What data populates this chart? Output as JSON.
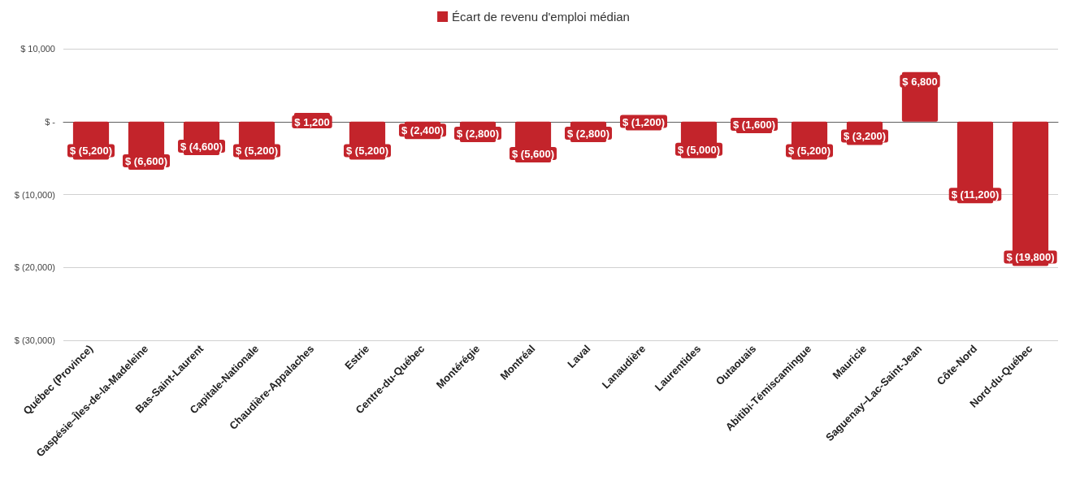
{
  "chart_data": {
    "type": "bar",
    "categories": [
      "Québec (Province)",
      "Gaspésie–Îles-de-la-Madeleine",
      "Bas-Saint-Laurent",
      "Capitale-Nationale",
      "Chaudière-Appalaches",
      "Estrie",
      "Centre-du-Québec",
      "Montérégie",
      "Montréal",
      "Laval",
      "Lanaudière",
      "Laurentides",
      "Outaouais",
      "Abitibi-Témiscamingue",
      "Mauricie",
      "Saguenay–Lac-Saint-Jean",
      "Côte-Nord",
      "Nord-du-Québec"
    ],
    "series": [
      {
        "name": "Écart de revenu d'emploi médian",
        "color": "#c3242b",
        "values": [
          -5200,
          -6600,
          -4600,
          -5200,
          1200,
          -5200,
          -2400,
          -2800,
          -5600,
          -2800,
          -1200,
          -5000,
          -1600,
          -5200,
          -3200,
          6800,
          -11200,
          -19800
        ],
        "value_labels": [
          "$ (5,200)",
          "$ (6,600)",
          "$ (4,600)",
          "$ (5,200)",
          "$ 1,200",
          "$ (5,200)",
          "$ (2,400)",
          "$ (2,800)",
          "$ (5,600)",
          "$ (2,800)",
          "$ (1,200)",
          "$ (5,000)",
          "$ (1,600)",
          "$ (5,200)",
          "$ (3,200)",
          "$ 6,800",
          "$ (11,200)",
          "$ (19,800)"
        ]
      }
    ],
    "ylim": [
      -30000,
      10000
    ],
    "yticks": [
      {
        "value": 10000,
        "label": "$ 10,000"
      },
      {
        "value": 0,
        "label": "$ -"
      },
      {
        "value": -10000,
        "label": "$ (10,000)"
      },
      {
        "value": -20000,
        "label": "$ (20,000)"
      },
      {
        "value": -30000,
        "label": "$ (30,000)"
      }
    ],
    "grid": "y",
    "legend": "top"
  }
}
